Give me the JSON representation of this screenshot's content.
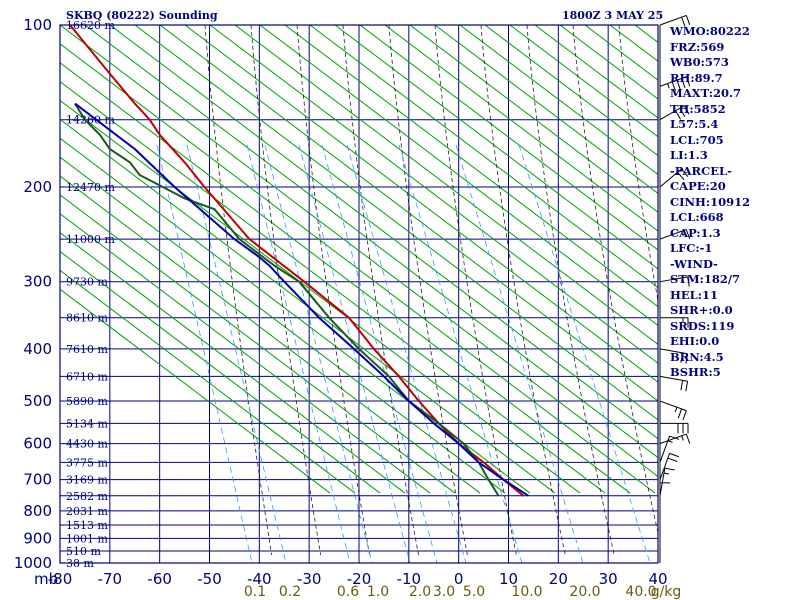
{
  "header": {
    "title": "SKBQ (80222) Sounding",
    "datetime": "1800Z  3 MAY 25"
  },
  "stats": [
    "WMO:80222",
    "FRZ:569",
    "WB0:573",
    "RH:89.7",
    "MAXT:20.7",
    "TH:5852",
    "L57:5.4",
    "LCL:705",
    "LI:1.3",
    "-PARCEL-",
    "CAPE:20",
    "CINH:10912",
    "LCL:668",
    "CAP:1.3",
    "LFC:-1",
    "-WIND-",
    "STM:182/7",
    "HEL:11",
    "SHR+:0.0",
    "SRDS:119",
    "EHI:0.0",
    "BRN:4.5",
    "BSHR:5"
  ],
  "colors": {
    "frame": "#000080",
    "isotherm": "#000090",
    "dry_adiabat": "#00a000",
    "moist_adiabat": "#202020",
    "mixing_ratio": "#3399ff",
    "temperature": "#c00000",
    "dewpoint": "#1a5a1a",
    "parcel": "#0000b0",
    "wind": "#000000",
    "mixing_label": "#6b5a12"
  },
  "chart_data": {
    "type": "skew-t log-p sounding",
    "y_axis": {
      "scale": "log",
      "unit": "mb",
      "range": [
        1000,
        100
      ],
      "ticks": [
        100,
        200,
        300,
        400,
        500,
        600,
        700,
        800,
        900,
        1000
      ]
    },
    "x_axis": {
      "unit": "°C",
      "range": [
        -80,
        40
      ],
      "ticks": [
        -80,
        -70,
        -60,
        -50,
        -40,
        -30,
        -20,
        -10,
        0,
        10,
        20,
        30,
        40
      ],
      "unit_label": "mb",
      "skewed": true
    },
    "height_labels": [
      {
        "p": 100,
        "label": "16620 m"
      },
      {
        "p": 150,
        "label": "14260 m"
      },
      {
        "p": 200,
        "label": "12470 m"
      },
      {
        "p": 250,
        "label": "11000 m"
      },
      {
        "p": 300,
        "label": "9730 m"
      },
      {
        "p": 350,
        "label": "8610 m"
      },
      {
        "p": 400,
        "label": "7610 m"
      },
      {
        "p": 450,
        "label": "6710 m"
      },
      {
        "p": 500,
        "label": "5890 m"
      },
      {
        "p": 550,
        "label": "5134 m"
      },
      {
        "p": 600,
        "label": "4430 m"
      },
      {
        "p": 650,
        "label": "3775 m"
      },
      {
        "p": 700,
        "label": "3169 m"
      },
      {
        "p": 750,
        "label": "2582 m"
      },
      {
        "p": 800,
        "label": "2031 m"
      },
      {
        "p": 850,
        "label": "1513 m"
      },
      {
        "p": 900,
        "label": "1001 m"
      },
      {
        "p": 950,
        "label": "510 m"
      },
      {
        "p": 1000,
        "label": "38 m"
      }
    ],
    "mixing_ratio_labels": [
      "0.1",
      "0.2",
      "0.6",
      "1.0",
      "2.0",
      "3.0",
      "5.0",
      "10.0",
      "20.0",
      "40.0",
      "g/kg"
    ],
    "mixing_ratio_values": [
      0.1,
      0.2,
      0.6,
      1.0,
      2.0,
      3.0,
      5.0,
      10.0,
      20.0,
      40.0
    ],
    "series": [
      {
        "key": "temperature",
        "points": [
          [
            750,
            13
          ],
          [
            700,
            9
          ],
          [
            650,
            5
          ],
          [
            600,
            0
          ],
          [
            550,
            -4
          ],
          [
            500,
            -8
          ],
          [
            450,
            -12
          ],
          [
            400,
            -17
          ],
          [
            350,
            -22
          ],
          [
            300,
            -31
          ],
          [
            250,
            -42
          ],
          [
            200,
            -51
          ],
          [
            180,
            -55
          ],
          [
            160,
            -60
          ],
          [
            150,
            -62
          ],
          [
            140,
            -65
          ],
          [
            120,
            -71
          ],
          [
            100,
            -78
          ]
        ]
      },
      {
        "key": "dewpoint",
        "points": [
          [
            750,
            8
          ],
          [
            700,
            6
          ],
          [
            650,
            4
          ],
          [
            600,
            1
          ],
          [
            550,
            -4
          ],
          [
            500,
            -10
          ],
          [
            450,
            -14
          ],
          [
            400,
            -20
          ],
          [
            350,
            -26
          ],
          [
            300,
            -32
          ],
          [
            280,
            -37
          ],
          [
            250,
            -44
          ],
          [
            220,
            -49
          ],
          [
            210,
            -55
          ],
          [
            190,
            -64
          ],
          [
            180,
            -66
          ],
          [
            170,
            -70
          ],
          [
            160,
            -72
          ],
          [
            150,
            -75
          ],
          [
            140,
            -77
          ]
        ]
      },
      {
        "key": "parcel",
        "points": [
          [
            750,
            14
          ],
          [
            700,
            9
          ],
          [
            650,
            4
          ],
          [
            600,
            0
          ],
          [
            550,
            -5
          ],
          [
            500,
            -10
          ],
          [
            450,
            -15
          ],
          [
            400,
            -21
          ],
          [
            350,
            -28
          ],
          [
            300,
            -35
          ],
          [
            280,
            -38
          ],
          [
            270,
            -40
          ],
          [
            250,
            -45
          ],
          [
            200,
            -57
          ],
          [
            170,
            -65
          ],
          [
            140,
            -77
          ]
        ]
      }
    ],
    "wind_barbs": [
      {
        "p": 100,
        "dir": 250,
        "spd": 20
      },
      {
        "p": 130,
        "dir": 250,
        "spd": 45
      },
      {
        "p": 150,
        "dir": 240,
        "spd": 30
      },
      {
        "p": 200,
        "dir": 230,
        "spd": 20
      },
      {
        "p": 250,
        "dir": 250,
        "spd": 15
      },
      {
        "p": 300,
        "dir": 260,
        "spd": 15
      },
      {
        "p": 350,
        "dir": 270,
        "spd": 15
      },
      {
        "p": 400,
        "dir": 280,
        "spd": 20
      },
      {
        "p": 450,
        "dir": 280,
        "spd": 20
      },
      {
        "p": 500,
        "dir": 290,
        "spd": 25
      },
      {
        "p": 550,
        "dir": 270,
        "spd": 30
      },
      {
        "p": 600,
        "dir": 250,
        "spd": 15
      },
      {
        "p": 650,
        "dir": 200,
        "spd": 15
      },
      {
        "p": 700,
        "dir": 200,
        "spd": 20
      },
      {
        "p": 750,
        "dir": 190,
        "spd": 15
      },
      {
        "p": 800,
        "dir": 180,
        "spd": 10
      }
    ]
  }
}
